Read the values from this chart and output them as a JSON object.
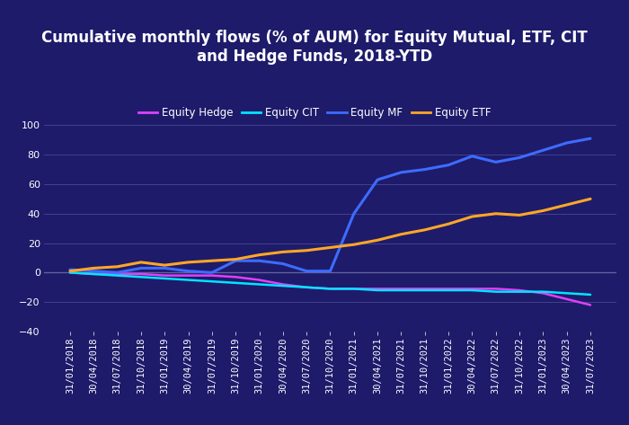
{
  "title": "Cumulative monthly flows (% of AUM) for Equity Mutual, ETF, CIT\nand Hedge Funds, 2018-YTD",
  "background_color": "#1e1b6b",
  "plot_bg_color": "#1e1b6b",
  "text_color": "#ffffff",
  "grid_color": "#4a4890",
  "ylim": [
    -40,
    110
  ],
  "yticks": [
    -40,
    -20,
    0,
    20,
    40,
    60,
    80,
    100
  ],
  "x_labels": [
    "31/01/2018",
    "30/04/2018",
    "31/07/2018",
    "31/10/2018",
    "31/01/2019",
    "30/04/2019",
    "31/07/2019",
    "31/10/2019",
    "31/01/2020",
    "30/04/2020",
    "31/07/2020",
    "31/10/2020",
    "31/01/2021",
    "30/04/2021",
    "31/07/2021",
    "31/10/2021",
    "31/01/2022",
    "30/04/2022",
    "31/07/2022",
    "31/10/2022",
    "31/01/2023",
    "30/04/2023",
    "31/07/2023"
  ],
  "series": {
    "Equity Hedge": {
      "color": "#e040fb",
      "linewidth": 1.8,
      "values": [
        0,
        -1,
        -1,
        -1,
        -2,
        -2,
        -2,
        -3,
        -5,
        -8,
        -10,
        -11,
        -11,
        -11,
        -11,
        -11,
        -11,
        -11,
        -11,
        -12,
        -14,
        -18,
        -22
      ]
    },
    "Equity CIT": {
      "color": "#00e5ff",
      "linewidth": 1.8,
      "values": [
        0,
        -1,
        -2,
        -3,
        -4,
        -5,
        -6,
        -7,
        -8,
        -9,
        -10,
        -11,
        -11,
        -12,
        -12,
        -12,
        -12,
        -12,
        -13,
        -13,
        -13,
        -14,
        -15
      ]
    },
    "Equity MF": {
      "color": "#3d6cff",
      "linewidth": 2.2,
      "values": [
        2,
        1,
        0,
        3,
        3,
        1,
        0,
        8,
        8,
        6,
        1,
        1,
        40,
        63,
        68,
        70,
        73,
        79,
        75,
        78,
        83,
        88,
        91
      ]
    },
    "Equity ETF": {
      "color": "#ffa726",
      "linewidth": 2.2,
      "values": [
        1,
        3,
        4,
        7,
        5,
        7,
        8,
        9,
        12,
        14,
        15,
        17,
        19,
        22,
        26,
        29,
        33,
        38,
        40,
        39,
        42,
        46,
        50
      ]
    }
  },
  "legend_order": [
    "Equity Hedge",
    "Equity CIT",
    "Equity MF",
    "Equity ETF"
  ],
  "title_fontsize": 12,
  "legend_fontsize": 8.5,
  "tick_fontsize": 7.5
}
